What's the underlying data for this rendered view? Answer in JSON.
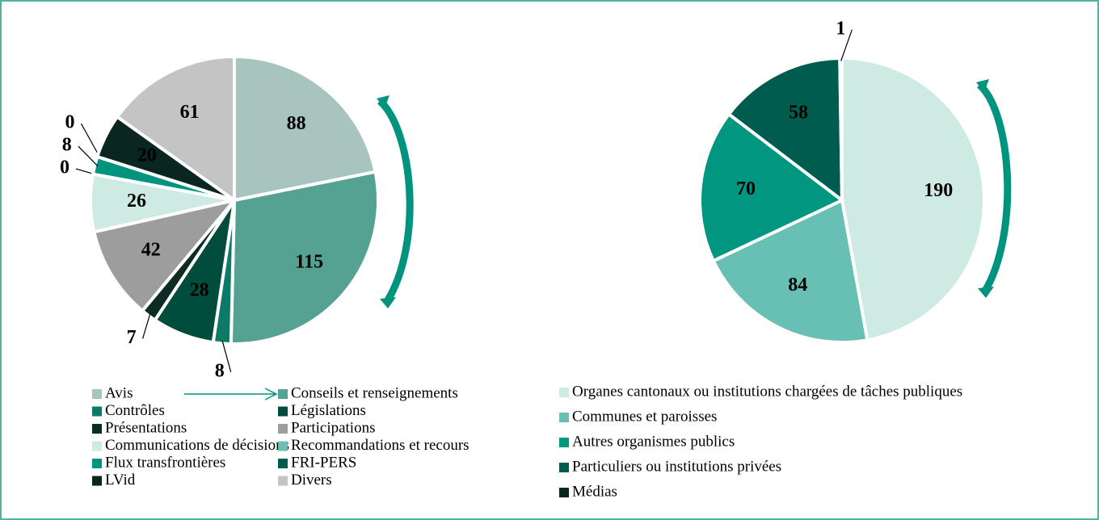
{
  "chart_data": [
    {
      "type": "pie",
      "categories": [
        "Avis",
        "Conseils et renseignements",
        "Contrôles",
        "Législations",
        "Présentations",
        "Participations",
        "Communications de décisions",
        "Recommandations et recours",
        "Flux transfrontières",
        "FRI-PERS",
        "LVid",
        "Divers"
      ],
      "values": [
        88,
        115,
        8,
        28,
        7,
        42,
        26,
        0,
        8,
        0,
        20,
        61
      ],
      "colors": [
        "#a8c4be",
        "#55a192",
        "#0b7a68",
        "#004d3e",
        "#0e2b24",
        "#9d9d9d",
        "#cdeae3",
        "#6cc0b2",
        "#00937d",
        "#005c4f",
        "#0a2621",
        "#c4c4c4"
      ]
    },
    {
      "type": "pie",
      "categories": [
        "Organes cantonaux ou institutions chargées de tâches publiques",
        "Communes et paroisses",
        "Autres organismes publics",
        "Particuliers ou institutions privées",
        "Médias"
      ],
      "values": [
        190,
        84,
        70,
        58,
        1
      ],
      "colors": [
        "#cdeae3",
        "#67c0b3",
        "#00967f",
        "#005c4f",
        "#0a2621"
      ]
    }
  ]
}
